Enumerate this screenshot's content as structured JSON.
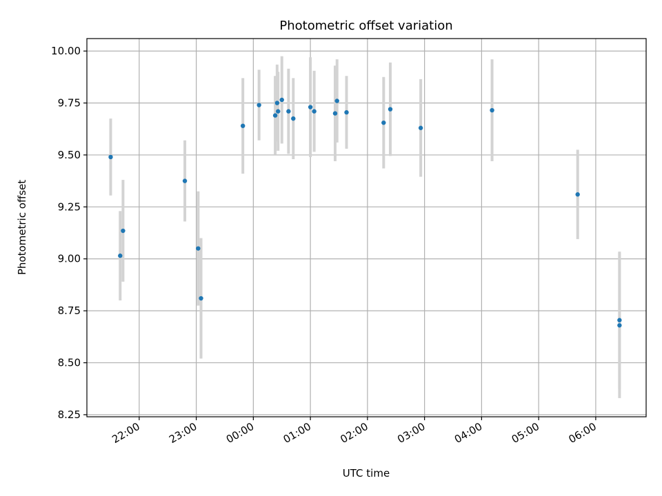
{
  "chart_data": {
    "type": "scatter",
    "title": "Photometric offset variation",
    "xlabel": "UTC time",
    "ylabel": "Photometric offset",
    "x_axis_type": "time",
    "x_start_date": "day 1",
    "xlim": [
      "21:05",
      "06:53 +1d"
    ],
    "ylim": [
      8.24,
      10.06
    ],
    "grid": true,
    "marker_color": "#1f77b4",
    "errorbar_color": "#d3d3d3",
    "x_ticks": [
      "22:00",
      "23:00",
      "00:00",
      "01:00",
      "02:00",
      "03:00",
      "04:00",
      "05:00",
      "06:00"
    ],
    "y_ticks": [
      "8.25",
      "8.50",
      "8.75",
      "9.00",
      "9.25",
      "9.50",
      "9.75",
      "10.00"
    ],
    "points": [
      {
        "t": "21:30",
        "y": 9.49,
        "err": 0.185
      },
      {
        "t": "21:40",
        "y": 9.015,
        "err": 0.215
      },
      {
        "t": "21:43",
        "y": 9.135,
        "err": 0.245
      },
      {
        "t": "22:48",
        "y": 9.375,
        "err": 0.195
      },
      {
        "t": "23:02",
        "y": 9.05,
        "err": 0.275
      },
      {
        "t": "23:05",
        "y": 8.81,
        "err": 0.29
      },
      {
        "t": "23:49",
        "y": 9.64,
        "err": 0.23
      },
      {
        "t": "00:06",
        "y": 9.74,
        "err": 0.17
      },
      {
        "t": "00:23",
        "y": 9.69,
        "err": 0.19
      },
      {
        "t": "00:25",
        "y": 9.75,
        "err": 0.185
      },
      {
        "t": "00:26",
        "y": 9.71,
        "err": 0.19
      },
      {
        "t": "00:30",
        "y": 9.765,
        "err": 0.21
      },
      {
        "t": "00:37",
        "y": 9.71,
        "err": 0.205
      },
      {
        "t": "00:42",
        "y": 9.675,
        "err": 0.195
      },
      {
        "t": "01:00",
        "y": 9.73,
        "err": 0.24
      },
      {
        "t": "01:04",
        "y": 9.71,
        "err": 0.195
      },
      {
        "t": "01:26",
        "y": 9.7,
        "err": 0.23
      },
      {
        "t": "01:28",
        "y": 9.76,
        "err": 0.2
      },
      {
        "t": "01:38",
        "y": 9.705,
        "err": 0.175
      },
      {
        "t": "02:17",
        "y": 9.655,
        "err": 0.22
      },
      {
        "t": "02:24",
        "y": 9.72,
        "err": 0.225
      },
      {
        "t": "02:56",
        "y": 9.63,
        "err": 0.235
      },
      {
        "t": "04:11",
        "y": 9.715,
        "err": 0.245
      },
      {
        "t": "05:41",
        "y": 9.31,
        "err": 0.215
      },
      {
        "t": "06:25",
        "y": 8.705,
        "err": 0.33
      },
      {
        "t": "06:25",
        "y": 8.68,
        "err": 0.35
      }
    ]
  }
}
